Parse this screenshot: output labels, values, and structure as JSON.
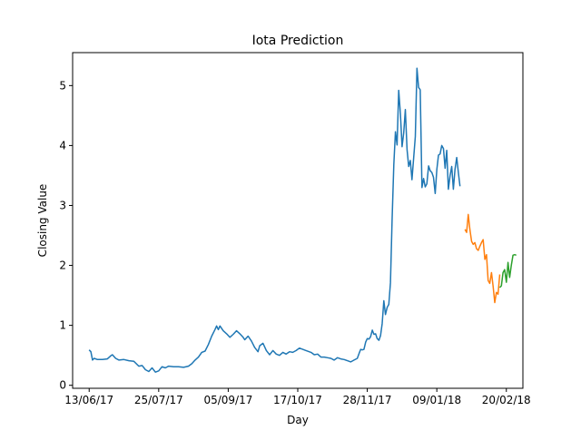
{
  "chart_data": {
    "type": "line",
    "title": "Iota Prediction",
    "xlabel": "Day",
    "ylabel": "Closing Value",
    "xlim": [
      "2017-06-03",
      "2018-03-02"
    ],
    "ylim": [
      -0.05,
      5.55
    ],
    "grid": false,
    "x_ticks": [
      {
        "date": "2017-06-13",
        "label": "13/06/17"
      },
      {
        "date": "2017-07-25",
        "label": "25/07/17"
      },
      {
        "date": "2017-09-05",
        "label": "05/09/17"
      },
      {
        "date": "2017-10-17",
        "label": "17/10/17"
      },
      {
        "date": "2017-11-28",
        "label": "28/11/17"
      },
      {
        "date": "2018-01-09",
        "label": "09/01/18"
      },
      {
        "date": "2018-02-20",
        "label": "20/02/18"
      }
    ],
    "y_ticks": [
      0,
      1,
      2,
      3,
      4,
      5
    ],
    "series": [
      {
        "color": "#1f77b4",
        "points": [
          [
            "2017-06-13",
            0.59
          ],
          [
            "2017-06-14",
            0.56
          ],
          [
            "2017-06-15",
            0.42
          ],
          [
            "2017-06-16",
            0.45
          ],
          [
            "2017-06-18",
            0.43
          ],
          [
            "2017-06-21",
            0.43
          ],
          [
            "2017-06-24",
            0.44
          ],
          [
            "2017-06-26",
            0.49
          ],
          [
            "2017-06-27",
            0.51
          ],
          [
            "2017-06-29",
            0.45
          ],
          [
            "2017-07-01",
            0.42
          ],
          [
            "2017-07-04",
            0.43
          ],
          [
            "2017-07-07",
            0.41
          ],
          [
            "2017-07-10",
            0.4
          ],
          [
            "2017-07-13",
            0.32
          ],
          [
            "2017-07-15",
            0.33
          ],
          [
            "2017-07-17",
            0.26
          ],
          [
            "2017-07-19",
            0.23
          ],
          [
            "2017-07-21",
            0.29
          ],
          [
            "2017-07-23",
            0.22
          ],
          [
            "2017-07-25",
            0.24
          ],
          [
            "2017-07-27",
            0.31
          ],
          [
            "2017-07-29",
            0.29
          ],
          [
            "2017-07-31",
            0.32
          ],
          [
            "2017-08-03",
            0.31
          ],
          [
            "2017-08-06",
            0.31
          ],
          [
            "2017-08-09",
            0.3
          ],
          [
            "2017-08-12",
            0.32
          ],
          [
            "2017-08-14",
            0.36
          ],
          [
            "2017-08-16",
            0.42
          ],
          [
            "2017-08-18",
            0.47
          ],
          [
            "2017-08-20",
            0.55
          ],
          [
            "2017-08-22",
            0.57
          ],
          [
            "2017-08-24",
            0.68
          ],
          [
            "2017-08-26",
            0.82
          ],
          [
            "2017-08-28",
            0.93
          ],
          [
            "2017-08-29",
            0.99
          ],
          [
            "2017-08-30",
            0.93
          ],
          [
            "2017-08-31",
            0.99
          ],
          [
            "2017-09-02",
            0.91
          ],
          [
            "2017-09-04",
            0.86
          ],
          [
            "2017-09-06",
            0.8
          ],
          [
            "2017-09-08",
            0.85
          ],
          [
            "2017-09-10",
            0.91
          ],
          [
            "2017-09-12",
            0.86
          ],
          [
            "2017-09-14",
            0.8
          ],
          [
            "2017-09-15",
            0.76
          ],
          [
            "2017-09-17",
            0.82
          ],
          [
            "2017-09-19",
            0.74
          ],
          [
            "2017-09-21",
            0.63
          ],
          [
            "2017-09-23",
            0.56
          ],
          [
            "2017-09-24",
            0.66
          ],
          [
            "2017-09-26",
            0.7
          ],
          [
            "2017-09-28",
            0.58
          ],
          [
            "2017-09-30",
            0.51
          ],
          [
            "2017-10-02",
            0.58
          ],
          [
            "2017-10-04",
            0.52
          ],
          [
            "2017-10-06",
            0.5
          ],
          [
            "2017-10-08",
            0.55
          ],
          [
            "2017-10-10",
            0.52
          ],
          [
            "2017-10-12",
            0.56
          ],
          [
            "2017-10-14",
            0.55
          ],
          [
            "2017-10-16",
            0.58
          ],
          [
            "2017-10-18",
            0.62
          ],
          [
            "2017-10-20",
            0.6
          ],
          [
            "2017-10-22",
            0.58
          ],
          [
            "2017-10-25",
            0.55
          ],
          [
            "2017-10-27",
            0.51
          ],
          [
            "2017-10-29",
            0.52
          ],
          [
            "2017-10-31",
            0.47
          ],
          [
            "2017-11-02",
            0.47
          ],
          [
            "2017-11-04",
            0.46
          ],
          [
            "2017-11-06",
            0.45
          ],
          [
            "2017-11-08",
            0.42
          ],
          [
            "2017-11-10",
            0.46
          ],
          [
            "2017-11-12",
            0.44
          ],
          [
            "2017-11-14",
            0.43
          ],
          [
            "2017-11-16",
            0.41
          ],
          [
            "2017-11-18",
            0.39
          ],
          [
            "2017-11-20",
            0.42
          ],
          [
            "2017-11-22",
            0.45
          ],
          [
            "2017-11-23",
            0.53
          ],
          [
            "2017-11-24",
            0.6
          ],
          [
            "2017-11-25",
            0.59
          ],
          [
            "2017-11-26",
            0.6
          ],
          [
            "2017-11-27",
            0.72
          ],
          [
            "2017-11-28",
            0.78
          ],
          [
            "2017-11-29",
            0.77
          ],
          [
            "2017-11-30",
            0.81
          ],
          [
            "2017-12-01",
            0.92
          ],
          [
            "2017-12-02",
            0.85
          ],
          [
            "2017-12-03",
            0.86
          ],
          [
            "2017-12-04",
            0.78
          ],
          [
            "2017-12-05",
            0.75
          ],
          [
            "2017-12-06",
            0.83
          ],
          [
            "2017-12-07",
            1.03
          ],
          [
            "2017-12-08",
            1.41
          ],
          [
            "2017-12-09",
            1.18
          ],
          [
            "2017-12-10",
            1.3
          ],
          [
            "2017-12-11",
            1.35
          ],
          [
            "2017-12-12",
            1.71
          ],
          [
            "2017-12-13",
            2.75
          ],
          [
            "2017-12-14",
            3.68
          ],
          [
            "2017-12-15",
            4.23
          ],
          [
            "2017-12-16",
            4.01
          ],
          [
            "2017-12-17",
            4.92
          ],
          [
            "2017-12-18",
            4.52
          ],
          [
            "2017-12-19",
            3.98
          ],
          [
            "2017-12-20",
            4.21
          ],
          [
            "2017-12-21",
            4.6
          ],
          [
            "2017-12-22",
            3.93
          ],
          [
            "2017-12-23",
            3.65
          ],
          [
            "2017-12-24",
            3.75
          ],
          [
            "2017-12-25",
            3.43
          ],
          [
            "2017-12-26",
            3.78
          ],
          [
            "2017-12-27",
            4.15
          ],
          [
            "2017-12-28",
            5.29
          ],
          [
            "2017-12-29",
            4.97
          ],
          [
            "2017-12-30",
            4.93
          ],
          [
            "2017-12-31",
            3.3
          ],
          [
            "2018-01-01",
            3.45
          ],
          [
            "2018-01-02",
            3.31
          ],
          [
            "2018-01-03",
            3.36
          ],
          [
            "2018-01-04",
            3.66
          ],
          [
            "2018-01-05",
            3.58
          ],
          [
            "2018-01-06",
            3.55
          ],
          [
            "2018-01-07",
            3.47
          ],
          [
            "2018-01-08",
            3.2
          ],
          [
            "2018-01-09",
            3.6
          ],
          [
            "2018-01-10",
            3.84
          ],
          [
            "2018-01-11",
            3.86
          ],
          [
            "2018-01-12",
            4.0
          ],
          [
            "2018-01-13",
            3.95
          ],
          [
            "2018-01-14",
            3.62
          ],
          [
            "2018-01-15",
            3.92
          ],
          [
            "2018-01-16",
            3.27
          ],
          [
            "2018-01-17",
            3.5
          ],
          [
            "2018-01-18",
            3.65
          ],
          [
            "2018-01-19",
            3.27
          ],
          [
            "2018-01-20",
            3.6
          ],
          [
            "2018-01-21",
            3.8
          ],
          [
            "2018-01-22",
            3.55
          ],
          [
            "2018-01-23",
            3.32
          ]
        ]
      },
      {
        "color": "#ff7f0e",
        "points": [
          [
            "2018-01-26",
            2.6
          ],
          [
            "2018-01-27",
            2.55
          ],
          [
            "2018-01-28",
            2.85
          ],
          [
            "2018-01-29",
            2.6
          ],
          [
            "2018-01-30",
            2.4
          ],
          [
            "2018-01-31",
            2.35
          ],
          [
            "2018-02-01",
            2.38
          ],
          [
            "2018-02-02",
            2.28
          ],
          [
            "2018-02-03",
            2.25
          ],
          [
            "2018-02-04",
            2.32
          ],
          [
            "2018-02-05",
            2.38
          ],
          [
            "2018-02-06",
            2.43
          ],
          [
            "2018-02-07",
            2.1
          ],
          [
            "2018-02-08",
            2.18
          ],
          [
            "2018-02-09",
            1.75
          ],
          [
            "2018-02-10",
            1.7
          ],
          [
            "2018-02-11",
            1.88
          ],
          [
            "2018-02-12",
            1.65
          ],
          [
            "2018-02-13",
            1.38
          ],
          [
            "2018-02-14",
            1.55
          ],
          [
            "2018-02-15",
            1.52
          ],
          [
            "2018-02-16",
            1.85
          ]
        ]
      },
      {
        "color": "#2ca02c",
        "points": [
          [
            "2018-02-16",
            1.63
          ],
          [
            "2018-02-17",
            1.66
          ],
          [
            "2018-02-18",
            1.88
          ],
          [
            "2018-02-19",
            1.93
          ],
          [
            "2018-02-20",
            1.72
          ],
          [
            "2018-02-21",
            2.05
          ],
          [
            "2018-02-22",
            1.8
          ],
          [
            "2018-02-23",
            2.0
          ],
          [
            "2018-02-24",
            2.17
          ],
          [
            "2018-02-25",
            2.18
          ],
          [
            "2018-02-26",
            2.17
          ]
        ]
      }
    ]
  }
}
